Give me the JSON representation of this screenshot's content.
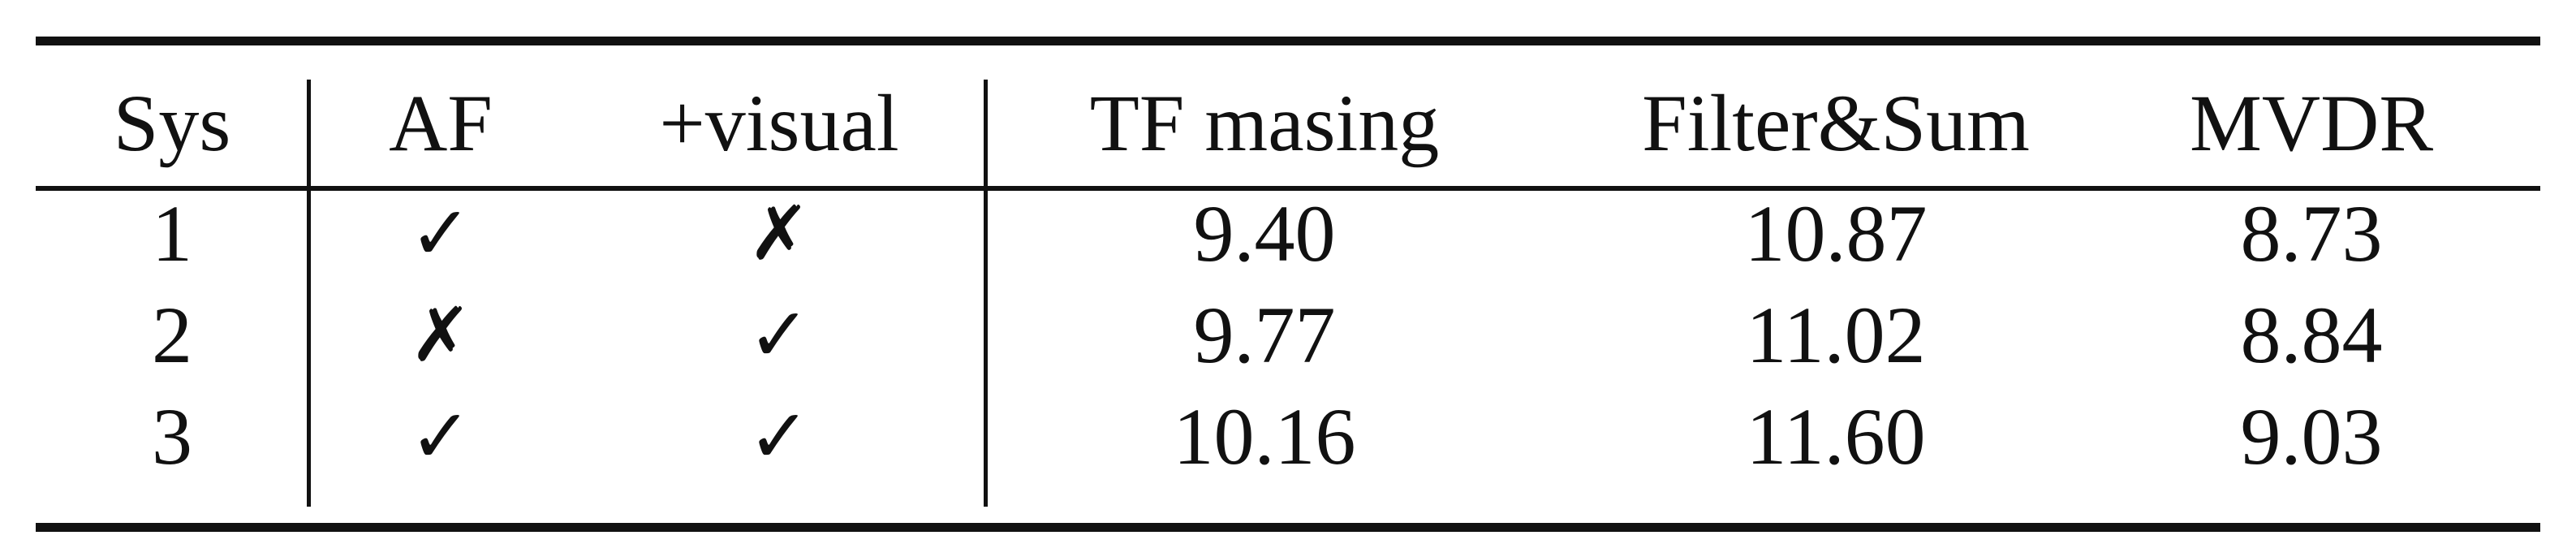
{
  "table": {
    "header": {
      "sys": "Sys",
      "af": "AF",
      "visual": "+visual",
      "tf": "TF masing",
      "fs": "Filter&Sum",
      "mvdr": "MVDR"
    },
    "rows": [
      {
        "sys": "1",
        "af": "✓",
        "visual": "✗",
        "tf": "9.40",
        "fs": "10.87",
        "mvdr": "8.73"
      },
      {
        "sys": "2",
        "af": "✗",
        "visual": "✓",
        "tf": "9.77",
        "fs": "11.02",
        "mvdr": "8.84"
      },
      {
        "sys": "3",
        "af": "✓",
        "visual": "✓",
        "tf": "10.16",
        "fs": "11.60",
        "mvdr": "9.03"
      }
    ]
  }
}
